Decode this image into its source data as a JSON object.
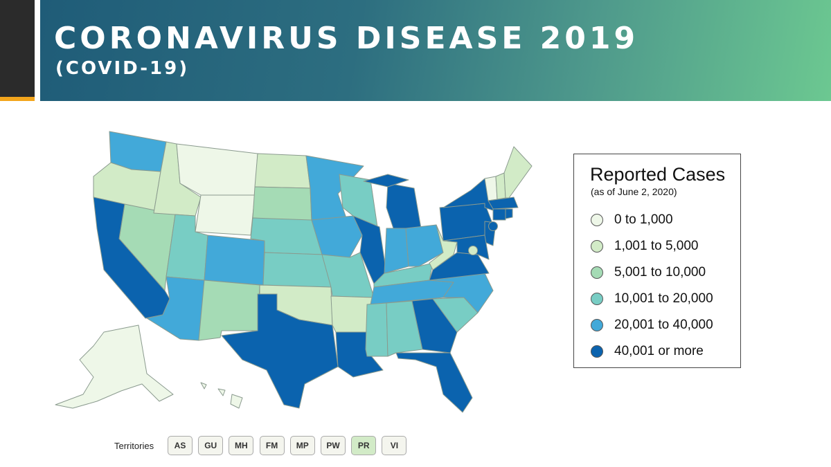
{
  "header": {
    "title": "CORONAVIRUS DISEASE 2019",
    "subtitle": "(COVID-19)"
  },
  "legend": {
    "title": "Reported Cases",
    "subtitle": "(as of June 2, 2020)",
    "items": [
      {
        "label": "0 to 1,000",
        "color": "#eef7e8"
      },
      {
        "label": "1,001 to 5,000",
        "color": "#d2ebc7"
      },
      {
        "label": "5,001 to 10,000",
        "color": "#a5dbb5"
      },
      {
        "label": "10,001 to 20,000",
        "color": "#78cdc4"
      },
      {
        "label": "20,001 to 40,000",
        "color": "#42a9d9"
      },
      {
        "label": "40,001 or more",
        "color": "#0b63ae"
      }
    ]
  },
  "territories": {
    "label": "Territories",
    "items": [
      "AS",
      "GU",
      "MH",
      "FM",
      "MP",
      "PW",
      "PR",
      "VI"
    ]
  }
}
